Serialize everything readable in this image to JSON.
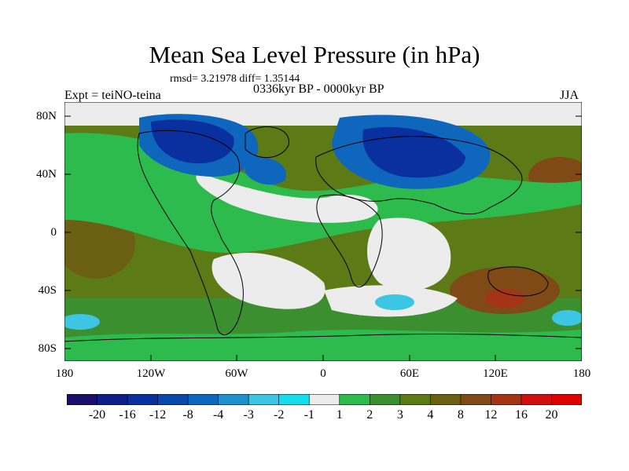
{
  "title": "Mean Sea Level Pressure (in hPa)",
  "stats_line": "rmsd= 3.21978 diff= 1.35144",
  "left_label": "Expt = teiNO-teina",
  "center_label": "0336kyr BP - 0000kyr BP",
  "right_label": "JJA",
  "lat_labels": [
    "80N",
    "40N",
    "0",
    "40S",
    "80S"
  ],
  "lon_labels": [
    "180",
    "120W",
    "60W",
    "0",
    "60E",
    "120E",
    "180"
  ],
  "colorbar": {
    "labels": [
      "-20",
      "-16",
      "-12",
      "-8",
      "-4",
      "-3",
      "-2",
      "-1",
      "1",
      "2",
      "3",
      "4",
      "8",
      "12",
      "16",
      "20"
    ],
    "colors": [
      "#1a0f6b",
      "#0c1f8a",
      "#0a2f9e",
      "#0b48ad",
      "#0f66bd",
      "#1e90d0",
      "#3cc6e3",
      "#14dcea",
      "#ececec",
      "#2dbb4d",
      "#3b8f2f",
      "#5c7a16",
      "#6a5f12",
      "#7f4a16",
      "#a53416",
      "#d01010",
      "#e00000"
    ]
  },
  "colors": {
    "ocean_positive": "#2dbb4d",
    "weak": "#ececec",
    "moderate_positive": "#3b8f2f",
    "strong_positive": "#6a5f12",
    "negative": "#0f66bd",
    "strong_negative": "#0a2f9e"
  }
}
